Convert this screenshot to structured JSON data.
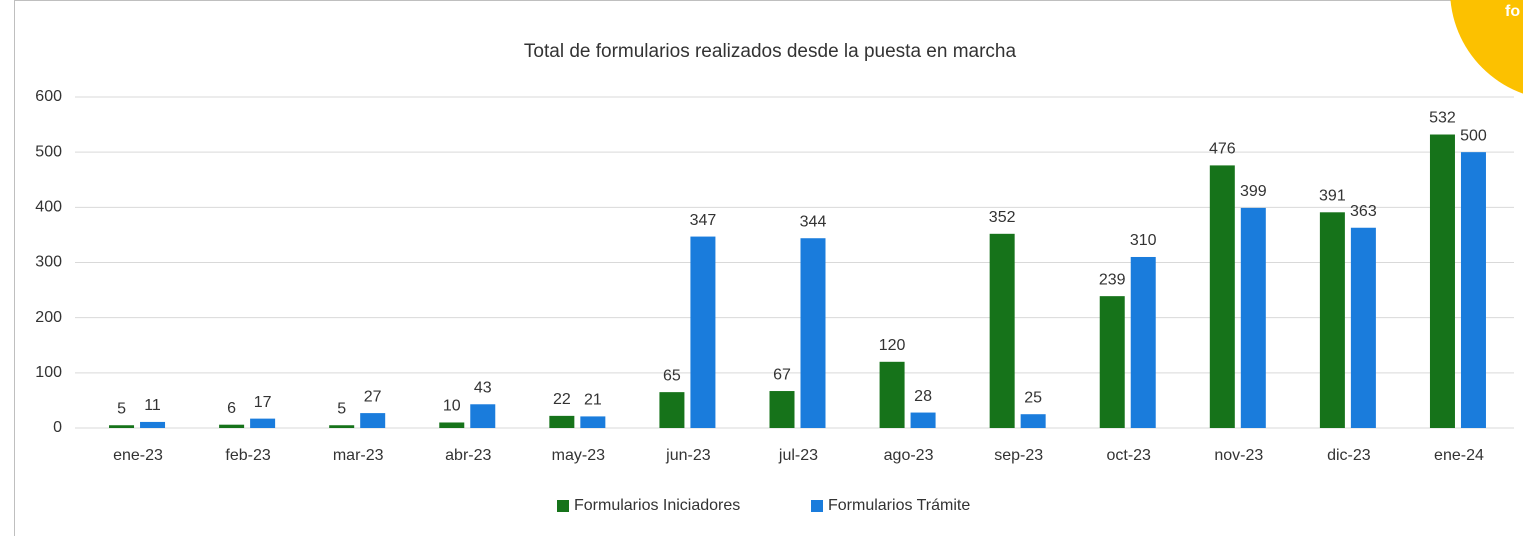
{
  "chart_data": {
    "type": "bar",
    "title": "Total de formularios realizados desde la puesta en marcha",
    "categories": [
      "ene-23",
      "feb-23",
      "mar-23",
      "abr-23",
      "may-23",
      "jun-23",
      "jul-23",
      "ago-23",
      "sep-23",
      "oct-23",
      "nov-23",
      "dic-23",
      "ene-24"
    ],
    "series": [
      {
        "name": "Formularios Iniciadores",
        "color": "#16731a",
        "values": [
          5,
          6,
          5,
          10,
          22,
          65,
          67,
          120,
          352,
          239,
          476,
          391,
          532
        ]
      },
      {
        "name": "Formularios Trámite",
        "color": "#1a7cdc",
        "values": [
          11,
          17,
          27,
          43,
          21,
          347,
          344,
          28,
          25,
          310,
          399,
          363,
          500
        ]
      }
    ],
    "ylim": [
      0,
      600
    ],
    "yticks": [
      0,
      100,
      200,
      300,
      400,
      500,
      600
    ],
    "grid": true,
    "legend": "bottom",
    "annotations": [
      "fo"
    ]
  }
}
